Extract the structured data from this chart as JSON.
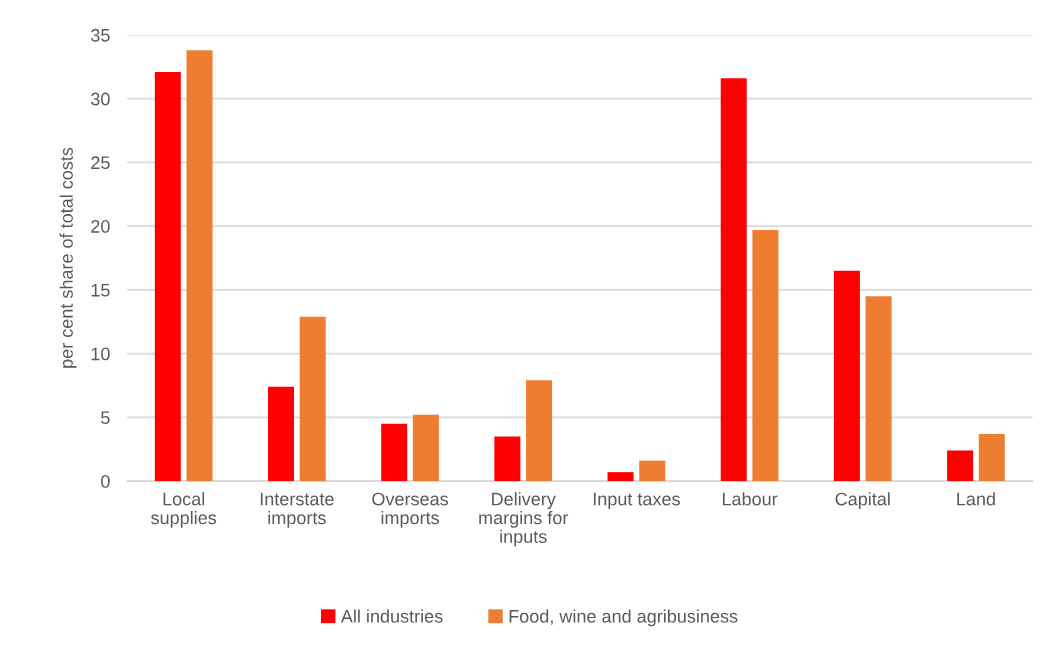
{
  "chart_data": {
    "type": "bar",
    "categories": [
      "Local supplies",
      "Interstate imports",
      "Overseas imports",
      "Delivery margins for inputs",
      "Input taxes",
      "Labour",
      "Capital",
      "Land"
    ],
    "series": [
      {
        "name": "All industries",
        "color": "#ff0000",
        "values": [
          32.1,
          7.4,
          4.5,
          3.5,
          0.7,
          31.6,
          16.5,
          2.4
        ]
      },
      {
        "name": "Food, wine and agribusiness",
        "color": "#ed7d31",
        "values": [
          33.8,
          12.9,
          5.2,
          7.9,
          1.6,
          19.7,
          14.5,
          3.7
        ]
      }
    ],
    "ylabel": "per cent share of total costs",
    "ylim": [
      0,
      35
    ],
    "yticks": [
      0,
      5,
      10,
      15,
      20,
      25,
      30,
      35
    ],
    "grid": "y",
    "legend": "bottom"
  }
}
